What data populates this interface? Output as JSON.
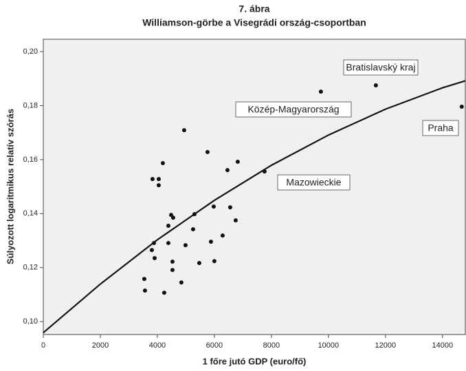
{
  "chart_data": {
    "type": "scatter",
    "title": "7. ábra",
    "subtitle": "Williamson-görbe a Visegrádi ország-csoportban",
    "x_label": "1 főre jutó GDP (euro/fő)",
    "y_label": "Súlyozott logaritmikus relatív szórás",
    "color": "#111111",
    "x": [
      9735,
      11663,
      14675,
      7759,
      6819,
      6458,
      5759,
      4940,
      4193,
      3831,
      4048,
      4048,
      6554,
      5976,
      5301,
      4482,
      4554,
      6747,
      4386,
      5253,
      6289,
      5880,
      3880,
      4386,
      4988,
      3807,
      3904,
      4530,
      6000,
      5470,
      4530,
      3542,
      4843,
      3566,
      4241
    ],
    "values": [
      0.1852,
      0.1875,
      0.1796,
      0.1556,
      0.1592,
      0.1561,
      0.1628,
      0.1709,
      0.1587,
      0.1528,
      0.1528,
      0.1505,
      0.1423,
      0.1426,
      0.1398,
      0.1395,
      0.1385,
      0.1375,
      0.1355,
      0.1342,
      0.1319,
      0.1296,
      0.1291,
      0.1291,
      0.1283,
      0.1265,
      0.1235,
      0.1222,
      0.1224,
      0.1217,
      0.1191,
      0.1158,
      0.1145,
      0.1115,
      0.1107
    ],
    "fit": {
      "x": [
        0,
        2000,
        4000,
        6000,
        8000,
        10000,
        12000,
        14000,
        14800
      ],
      "values": [
        0.0959,
        0.1139,
        0.1303,
        0.1449,
        0.1579,
        0.1691,
        0.1787,
        0.1866,
        0.1892
      ],
      "color": "#111111"
    },
    "annotations": [
      {
        "text": "Bratislavský kraj"
      },
      {
        "text": "Közép-Magyarország"
      },
      {
        "text": "Praha"
      },
      {
        "text": "Mazowieckie"
      }
    ],
    "xlim": [
      0,
      14800
    ],
    "ylim": [
      0.0952,
      0.2046
    ],
    "xticks": [
      0,
      2000,
      4000,
      6000,
      8000,
      10000,
      12000,
      14000
    ],
    "yticks": [
      {
        "value": 0.1,
        "label": "0,10"
      },
      {
        "value": 0.12,
        "label": "0,12"
      },
      {
        "value": 0.14,
        "label": "0,14"
      },
      {
        "value": 0.16,
        "label": "0,16"
      },
      {
        "value": 0.18,
        "label": "0,18"
      },
      {
        "value": 0.2,
        "label": "0,20"
      }
    ],
    "plot_background": "#f0f0f0"
  }
}
